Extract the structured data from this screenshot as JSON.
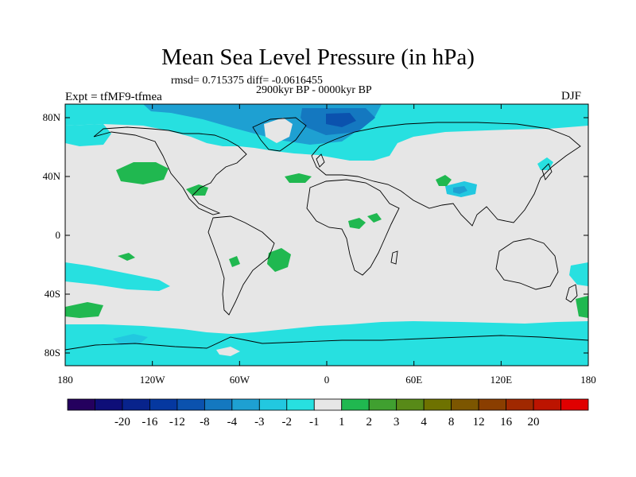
{
  "title": "Mean Sea Level Pressure (in hPa)",
  "stats": "rmsd= 0.715375 diff= -0.0616455",
  "period": "2900kyr BP - 0000kyr BP",
  "expt": "Expt = tfMF9-tfmea",
  "season": "DJF",
  "lat_labels": [
    "80N",
    "40N",
    "0",
    "40S",
    "80S"
  ],
  "lon_labels": [
    "180",
    "120W",
    "60W",
    "0",
    "60E",
    "120E",
    "180"
  ],
  "colorbar": {
    "labels": [
      "-20",
      "-16",
      "-12",
      "-8",
      "-4",
      "-3",
      "-2",
      "-1",
      "1",
      "2",
      "3",
      "4",
      "8",
      "12",
      "16",
      "20"
    ],
    "colors": [
      "#24005e",
      "#0e0e78",
      "#08238c",
      "#0538a0",
      "#0b52ae",
      "#1478c0",
      "#1ea0d2",
      "#22c8e0",
      "#27e0e0",
      "#e6e6e6",
      "#20b850",
      "#40a030",
      "#588a18",
      "#6e7200",
      "#7c5600",
      "#8a3e00",
      "#a02800",
      "#bc1400",
      "#e00000"
    ]
  },
  "colors": {
    "background": "#e6e6e6",
    "neg_light": "#27e0e0",
    "neg_mid": "#22c8e0",
    "neg_dark": "#1ea0d2",
    "neg_deep": "#1478c0",
    "neg_deepest": "#0b52ae",
    "pos": "#20b850"
  }
}
